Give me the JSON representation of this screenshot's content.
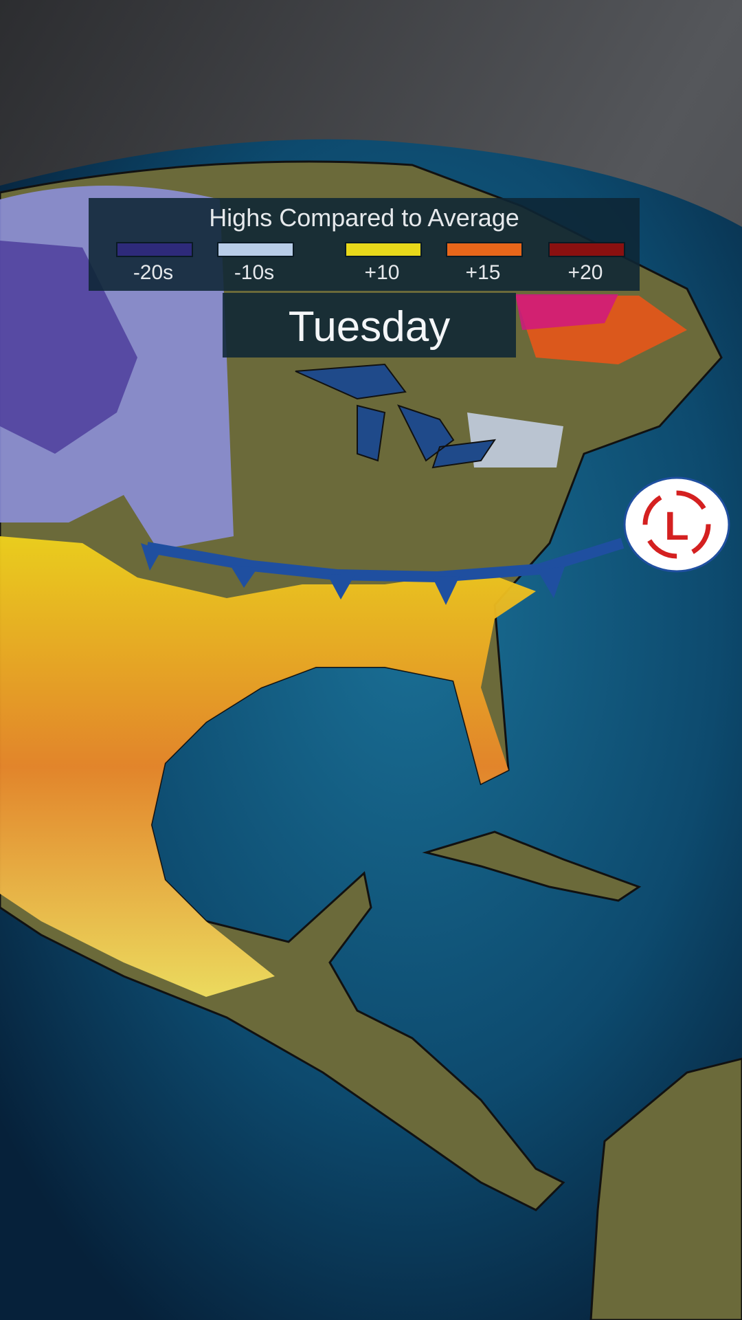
{
  "legend": {
    "title": "Highs Compared to Average",
    "items": [
      {
        "label": "-20s",
        "color": "#2e2a7a"
      },
      {
        "label": "-10s",
        "color": "#b8cde8"
      },
      {
        "label": "+10",
        "color": "#e8d81a"
      },
      {
        "label": "+15",
        "color": "#e8661a"
      },
      {
        "label": "+20",
        "color": "#8a1010"
      }
    ]
  },
  "day_label": "Tuesday",
  "map_features": {
    "cold_front_color": "#1f4fa0",
    "low_pressure_symbol": "L",
    "low_pressure_color": "#d42020",
    "ocean_color": "#0e4f74",
    "land_color": "#6b6a3a"
  }
}
